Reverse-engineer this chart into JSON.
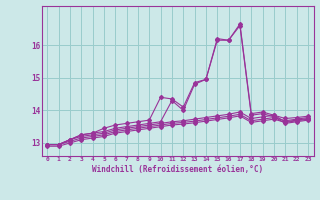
{
  "xlabel": "Windchill (Refroidissement éolien,°C)",
  "bg_color": "#cce8e8",
  "grid_color": "#99cccc",
  "line_color": "#993399",
  "x": [
    0,
    1,
    2,
    3,
    4,
    5,
    6,
    7,
    8,
    9,
    10,
    11,
    12,
    13,
    14,
    15,
    16,
    17,
    18,
    19,
    20,
    21,
    22,
    23
  ],
  "series1": [
    12.95,
    12.95,
    13.1,
    13.25,
    13.3,
    13.45,
    13.55,
    13.6,
    13.65,
    13.7,
    14.4,
    14.35,
    14.1,
    14.85,
    14.95,
    16.2,
    16.15,
    16.65,
    13.9,
    13.95,
    13.85,
    13.65,
    13.7,
    13.75
  ],
  "series2": [
    12.95,
    12.95,
    13.1,
    13.25,
    13.3,
    13.35,
    13.45,
    13.5,
    13.55,
    13.6,
    13.65,
    14.3,
    14.0,
    14.8,
    14.95,
    16.15,
    16.15,
    16.6,
    13.85,
    13.9,
    13.8,
    13.6,
    13.65,
    13.7
  ],
  "series3": [
    12.95,
    12.95,
    13.1,
    13.2,
    13.25,
    13.3,
    13.4,
    13.45,
    13.5,
    13.55,
    13.6,
    13.65,
    13.68,
    13.73,
    13.78,
    13.83,
    13.88,
    13.95,
    13.75,
    13.8,
    13.85,
    13.75,
    13.78,
    13.82
  ],
  "series4": [
    12.95,
    12.95,
    13.05,
    13.15,
    13.2,
    13.25,
    13.35,
    13.4,
    13.45,
    13.5,
    13.55,
    13.6,
    13.63,
    13.67,
    13.72,
    13.77,
    13.82,
    13.88,
    13.68,
    13.73,
    13.78,
    13.68,
    13.73,
    13.78
  ],
  "series5": [
    12.9,
    12.9,
    13.0,
    13.1,
    13.15,
    13.2,
    13.3,
    13.35,
    13.4,
    13.45,
    13.5,
    13.55,
    13.58,
    13.62,
    13.67,
    13.72,
    13.77,
    13.83,
    13.63,
    13.68,
    13.73,
    13.63,
    13.68,
    13.73
  ],
  "ylim_min": 12.6,
  "ylim_max": 17.2,
  "yticks": [
    13,
    14,
    15,
    16
  ],
  "xtick_labels": [
    "0",
    "1",
    "2",
    "3",
    "4",
    "5",
    "6",
    "7",
    "8",
    "9",
    "10",
    "11",
    "12",
    "13",
    "14",
    "15",
    "16",
    "17",
    "18",
    "19",
    "20",
    "21",
    "22",
    "23"
  ]
}
